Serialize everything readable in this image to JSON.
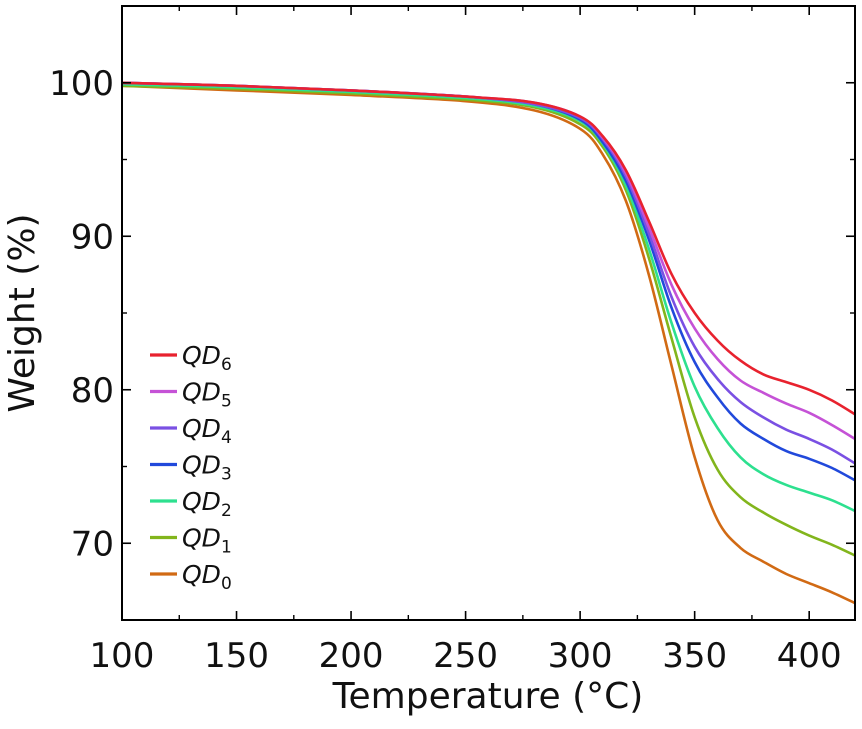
{
  "chart_data": {
    "type": "line",
    "title": "",
    "xlabel": "Temperature (°C)",
    "ylabel": "Weight (%)",
    "xlim": [
      100,
      420
    ],
    "ylim": [
      65,
      105
    ],
    "xticks": [
      100,
      150,
      200,
      250,
      300,
      350,
      400
    ],
    "yticks": [
      70,
      80,
      90,
      100
    ],
    "grid": false,
    "legend_position": "lower-left",
    "series": [
      {
        "name": "QD",
        "subscript": "6",
        "color": "#e8222e",
        "x": [
          100,
          150,
          200,
          250,
          280,
          300,
          310,
          320,
          330,
          340,
          350,
          360,
          370,
          380,
          390,
          400,
          410,
          420
        ],
        "y": [
          100,
          99.8,
          99.5,
          99.1,
          98.7,
          97.8,
          96.5,
          94.3,
          91.0,
          87.5,
          85.0,
          83.2,
          81.9,
          81.0,
          80.5,
          80.0,
          79.3,
          78.4
        ]
      },
      {
        "name": "QD",
        "subscript": "5",
        "color": "#c552d6",
        "x": [
          100,
          150,
          200,
          250,
          280,
          300,
          310,
          320,
          330,
          340,
          350,
          360,
          370,
          380,
          390,
          400,
          410,
          420
        ],
        "y": [
          100,
          99.8,
          99.5,
          99.1,
          98.7,
          97.8,
          96.4,
          94.1,
          90.6,
          86.8,
          84.0,
          82.0,
          80.6,
          79.8,
          79.1,
          78.5,
          77.7,
          76.8
        ]
      },
      {
        "name": "QD",
        "subscript": "4",
        "color": "#7a50e3",
        "x": [
          100,
          150,
          200,
          250,
          280,
          300,
          310,
          320,
          330,
          340,
          350,
          360,
          370,
          380,
          390,
          400,
          410,
          420
        ],
        "y": [
          100,
          99.8,
          99.5,
          99.1,
          98.6,
          97.7,
          96.3,
          93.9,
          90.2,
          86.0,
          82.8,
          80.7,
          79.2,
          78.2,
          77.4,
          76.8,
          76.1,
          75.2
        ]
      },
      {
        "name": "QD",
        "subscript": "3",
        "color": "#2149db",
        "x": [
          100,
          150,
          200,
          250,
          280,
          300,
          310,
          320,
          330,
          340,
          350,
          360,
          370,
          380,
          390,
          400,
          410,
          420
        ],
        "y": [
          100,
          99.8,
          99.5,
          99.1,
          98.6,
          97.6,
          96.1,
          93.6,
          89.8,
          85.3,
          81.8,
          79.5,
          77.8,
          76.8,
          76.0,
          75.5,
          74.9,
          74.1
        ]
      },
      {
        "name": "QD",
        "subscript": "2",
        "color": "#2de08f",
        "x": [
          100,
          150,
          200,
          250,
          280,
          300,
          310,
          320,
          330,
          340,
          350,
          360,
          370,
          380,
          390,
          400,
          410,
          420
        ],
        "y": [
          99.9,
          99.7,
          99.4,
          99.0,
          98.5,
          97.5,
          96.0,
          93.3,
          89.2,
          84.3,
          80.2,
          77.5,
          75.6,
          74.5,
          73.8,
          73.3,
          72.8,
          72.1
        ]
      },
      {
        "name": "QD",
        "subscript": "1",
        "color": "#82b51c",
        "x": [
          100,
          150,
          200,
          250,
          280,
          300,
          310,
          320,
          330,
          340,
          350,
          360,
          370,
          380,
          390,
          400,
          410,
          420
        ],
        "y": [
          99.8,
          99.6,
          99.3,
          98.9,
          98.4,
          97.3,
          95.8,
          93.0,
          88.6,
          83.3,
          78.2,
          74.8,
          73.0,
          72.0,
          71.2,
          70.5,
          69.9,
          69.2
        ]
      },
      {
        "name": "QD",
        "subscript": "0",
        "color": "#d16a14",
        "x": [
          100,
          150,
          200,
          250,
          280,
          300,
          310,
          320,
          330,
          340,
          350,
          360,
          370,
          380,
          390,
          400,
          410,
          420
        ],
        "y": [
          99.8,
          99.5,
          99.2,
          98.8,
          98.2,
          97.0,
          95.3,
          92.3,
          87.5,
          81.5,
          75.6,
          71.5,
          69.7,
          68.8,
          68.0,
          67.4,
          66.8,
          66.1
        ]
      }
    ]
  }
}
